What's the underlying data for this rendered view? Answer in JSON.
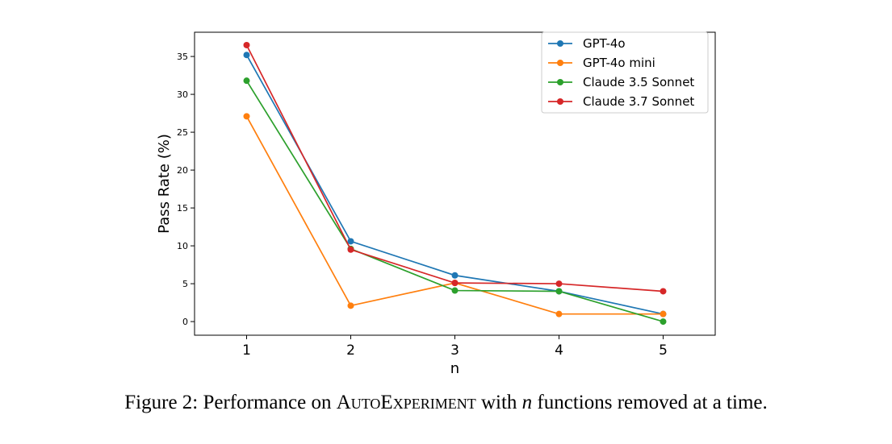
{
  "chart_data": {
    "type": "line",
    "xlabel": "n",
    "ylabel": "Pass Rate (%)",
    "x": [
      1,
      2,
      3,
      4,
      5
    ],
    "xlim": [
      0.5,
      5.5
    ],
    "ylim": [
      -1.8,
      38.2
    ],
    "y_ticks": [
      0,
      5,
      10,
      15,
      20,
      25,
      30,
      35
    ],
    "grid": false,
    "legend_position": "top-right",
    "series": [
      {
        "name": "GPT-4o",
        "color": "#1f77b4",
        "values": [
          35.2,
          10.6,
          6.1,
          4.0,
          1.0
        ]
      },
      {
        "name": "GPT-4o mini",
        "color": "#ff7f0e",
        "values": [
          27.1,
          2.1,
          5.1,
          1.0,
          1.0
        ]
      },
      {
        "name": "Claude 3.5 Sonnet",
        "color": "#2ca02c",
        "values": [
          31.8,
          9.6,
          4.1,
          4.0,
          0.0
        ]
      },
      {
        "name": "Claude 3.7 Sonnet",
        "color": "#d62728",
        "values": [
          36.5,
          9.5,
          5.1,
          5.0,
          4.0
        ]
      }
    ]
  },
  "caption": {
    "prefix": "Figure 2: Performance on ",
    "name_part1": "AutoExperiment",
    "middle": " with ",
    "var": "n",
    "suffix": " functions removed at a time."
  }
}
